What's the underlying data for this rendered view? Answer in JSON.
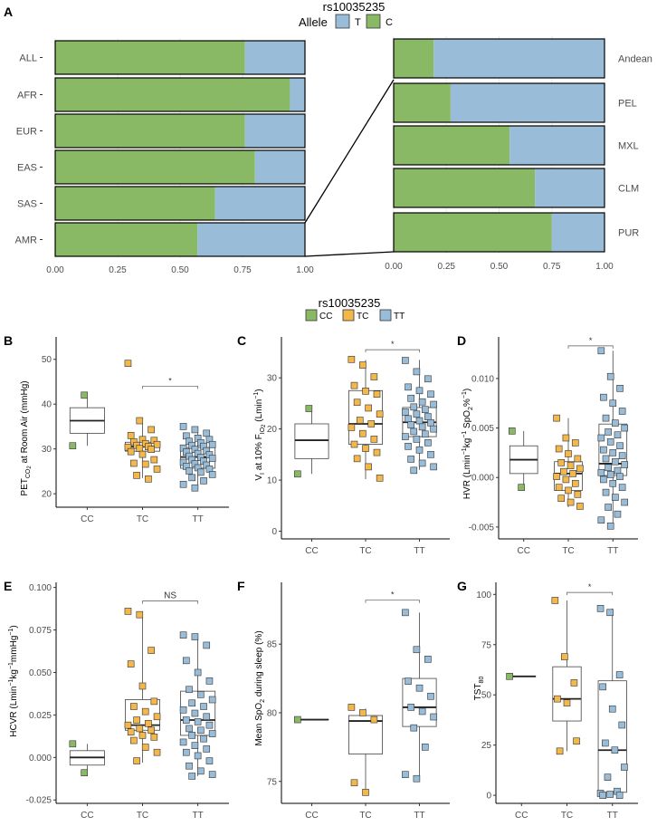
{
  "colors": {
    "green": "#8ab965",
    "blue": "#99bdd8",
    "orange": "#f3b74c",
    "box_stroke": "#444444",
    "grid": "#ebebeb",
    "axis_text": "#4d4d4d"
  },
  "chart_data": [
    {
      "panel": "A",
      "type": "bar",
      "orientation": "horizontal",
      "stacked": true,
      "title": "rs10035235",
      "legend": {
        "title": "Allele",
        "items": [
          "T",
          "C"
        ]
      },
      "left": {
        "categories": [
          "ALL",
          "AFR",
          "EUR",
          "EAS",
          "SAS",
          "AMR"
        ],
        "series": [
          {
            "name": "C",
            "values": [
              0.76,
              0.94,
              0.76,
              0.8,
              0.64,
              0.57
            ]
          },
          {
            "name": "T",
            "values": [
              0.24,
              0.06,
              0.24,
              0.2,
              0.36,
              0.43
            ]
          }
        ],
        "xlim": [
          0,
          1
        ],
        "xticks": [
          "0.00",
          "0.25",
          "0.50",
          "0.75",
          "1.00"
        ]
      },
      "right": {
        "categories": [
          "Andean",
          "PEL",
          "MXL",
          "CLM",
          "PUR"
        ],
        "series": [
          {
            "name": "C",
            "values": [
              0.19,
              0.27,
              0.55,
              0.67,
              0.75
            ]
          },
          {
            "name": "T",
            "values": [
              0.81,
              0.73,
              0.45,
              0.33,
              0.25
            ]
          }
        ],
        "xlim": [
          0,
          1
        ],
        "xticks": [
          "0.00",
          "0.25",
          "0.50",
          "0.75",
          "1.00"
        ]
      }
    },
    {
      "panel": "B",
      "type": "box",
      "ylim": [
        17,
        55
      ],
      "yticks": [
        20,
        30,
        40,
        50
      ],
      "categories": [
        "CC",
        "TC",
        "TT"
      ],
      "sig": {
        "label": "*",
        "from": 1,
        "to": 2,
        "y": 44
      },
      "boxes": [
        {
          "q1": 33.5,
          "median": 36.3,
          "q3": 39.2,
          "wlo": 30.7,
          "whi": 42.0
        },
        {
          "q1": 29.5,
          "median": 30.5,
          "q3": 31.5,
          "wlo": 23.5,
          "whi": 36.3
        },
        {
          "q1": 25.7,
          "median": 28.2,
          "q3": 30.3,
          "wlo": 21.0,
          "whi": 35.0
        }
      ],
      "points": [
        [
          30.7,
          42.0
        ],
        [
          49.1,
          36.3,
          34.3,
          33.0,
          32.1,
          31.9,
          31.6,
          31.2,
          31.0,
          30.8,
          30.5,
          30.4,
          30.1,
          29.9,
          29.4,
          28.8,
          27.6,
          26.8,
          26.6,
          25.5,
          24.1,
          23.3
        ],
        [
          35.0,
          34.3,
          33.5,
          32.9,
          32.4,
          32.1,
          31.7,
          31.4,
          31.0,
          30.8,
          30.6,
          30.2,
          29.9,
          29.6,
          29.3,
          29.0,
          28.7,
          28.4,
          28.1,
          27.9,
          27.6,
          27.3,
          27.0,
          26.7,
          26.4,
          26.1,
          25.8,
          25.5,
          25.1,
          24.8,
          24.3,
          23.6,
          22.9,
          22.1,
          21.3
        ]
      ]
    },
    {
      "panel": "C",
      "type": "box",
      "ylim": [
        -1.5,
        38
      ],
      "yticks": [
        0,
        10,
        20,
        30
      ],
      "categories": [
        "CC",
        "TC",
        "TT"
      ],
      "sig": {
        "label": "*",
        "from": 1,
        "to": 2,
        "y": 35.5
      },
      "boxes": [
        {
          "q1": 14.2,
          "median": 17.8,
          "q3": 21.0,
          "wlo": 11.2,
          "whi": 24.0
        },
        {
          "q1": 17.0,
          "median": 21.0,
          "q3": 27.5,
          "wlo": 10.2,
          "whi": 33.5
        },
        {
          "q1": 18.5,
          "median": 21.3,
          "q3": 24.2,
          "wlo": 12.0,
          "whi": 33.5
        }
      ],
      "points": [
        [
          11.2,
          24.0
        ],
        [
          33.6,
          32.5,
          30.2,
          28.5,
          27.4,
          26.8,
          25.2,
          24.1,
          22.9,
          21.7,
          21.0,
          20.3,
          19.1,
          18.0,
          17.0,
          16.2,
          15.4,
          14.2,
          12.6,
          10.4
        ],
        [
          33.4,
          31.2,
          29.8,
          28.2,
          27.5,
          26.8,
          26.0,
          25.3,
          24.8,
          24.3,
          23.8,
          23.3,
          22.9,
          22.4,
          22.0,
          21.6,
          21.2,
          20.8,
          20.4,
          20.0,
          19.5,
          19.0,
          18.5,
          18.0,
          17.3,
          16.6,
          15.9,
          15.0,
          14.1,
          13.3,
          12.6,
          11.9
        ]
      ]
    },
    {
      "panel": "D",
      "type": "box",
      "ylim": [
        -0.0062,
        0.0142
      ],
      "yticks": [
        -0.005,
        0.0,
        0.005,
        0.01
      ],
      "ytick_labels": [
        "-0.005",
        "0.000",
        "0.005",
        "0.010"
      ],
      "categories": [
        "CC",
        "TC",
        "TT"
      ],
      "sig": {
        "label": "*",
        "from": 1,
        "to": 2,
        "y": 0.0133
      },
      "boxes": [
        {
          "q1": 0.0004,
          "median": 0.0018,
          "q3": 0.0032,
          "wlo": -0.001,
          "whi": 0.0047
        },
        {
          "q1": -0.0013,
          "median": 0.0004,
          "q3": 0.0016,
          "wlo": -0.003,
          "whi": 0.006
        },
        {
          "q1": 0.0002,
          "median": 0.0014,
          "q3": 0.0054,
          "wlo": -0.005,
          "whi": 0.0128
        }
      ],
      "points": [
        [
          0.0047,
          -0.001
        ],
        [
          0.006,
          0.004,
          0.0035,
          0.0029,
          0.0024,
          0.0019,
          0.0015,
          0.0012,
          0.0009,
          0.0006,
          0.0004,
          0.0001,
          -0.0002,
          -0.0006,
          -0.001,
          -0.0013,
          -0.0017,
          -0.0021,
          -0.0025,
          -0.0029
        ],
        [
          0.0128,
          0.0102,
          0.009,
          0.0081,
          0.0075,
          0.0067,
          0.006,
          0.0055,
          0.005,
          0.0046,
          0.0043,
          0.004,
          0.0036,
          0.0032,
          0.0028,
          0.0025,
          0.0022,
          0.0019,
          0.0016,
          0.0013,
          0.001,
          0.0007,
          0.0005,
          0.0003,
          0.0001,
          -0.0002,
          -0.0006,
          -0.001,
          -0.0015,
          -0.002,
          -0.0025,
          -0.003,
          -0.0037,
          -0.0043,
          -0.0049
        ]
      ]
    },
    {
      "panel": "E",
      "type": "box",
      "ylim": [
        -0.027,
        0.103
      ],
      "yticks": [
        -0.025,
        0.0,
        0.025,
        0.05,
        0.075,
        0.1
      ],
      "ytick_labels": [
        "-0.025",
        "0.000",
        "0.025",
        "0.050",
        "0.075",
        "0.100"
      ],
      "categories": [
        "CC",
        "TC",
        "TT"
      ],
      "sig": {
        "label": "NS",
        "from": 1,
        "to": 2,
        "y": 0.092
      },
      "boxes": [
        {
          "q1": -0.0045,
          "median": 0.0,
          "q3": 0.004,
          "wlo": -0.009,
          "whi": 0.008
        },
        {
          "q1": 0.016,
          "median": 0.019,
          "q3": 0.034,
          "wlo": -0.003,
          "whi": 0.086
        },
        {
          "q1": 0.013,
          "median": 0.022,
          "q3": 0.039,
          "wlo": -0.011,
          "whi": 0.072
        }
      ],
      "points": [
        [
          0.008,
          -0.009
        ],
        [
          0.086,
          0.084,
          0.063,
          0.055,
          0.042,
          0.033,
          0.03,
          0.027,
          0.024,
          0.022,
          0.02,
          0.019,
          0.017,
          0.016,
          0.015,
          0.013,
          0.012,
          0.01,
          0.006,
          0.003,
          -0.002
        ],
        [
          0.072,
          0.071,
          0.066,
          0.057,
          0.05,
          0.045,
          0.04,
          0.037,
          0.034,
          0.032,
          0.03,
          0.028,
          0.026,
          0.024,
          0.022,
          0.021,
          0.019,
          0.017,
          0.016,
          0.014,
          0.013,
          0.011,
          0.009,
          0.007,
          0.005,
          0.003,
          0.001,
          -0.002,
          -0.005,
          -0.008,
          -0.01,
          -0.011
        ]
      ]
    },
    {
      "panel": "F",
      "type": "box",
      "ylim": [
        73.4,
        89.5
      ],
      "yticks": [
        75,
        80,
        85
      ],
      "categories": [
        "CC",
        "TC",
        "TT"
      ],
      "sig": {
        "label": "*",
        "from": 1,
        "to": 2,
        "y": 88.2
      },
      "boxes": [
        {
          "q1": 79.5,
          "median": 79.5,
          "q3": 79.5,
          "wlo": 79.5,
          "whi": 79.5
        },
        {
          "q1": 77.0,
          "median": 79.4,
          "q3": 79.8,
          "wlo": 74.2,
          "whi": 80.3
        },
        {
          "q1": 79.0,
          "median": 80.4,
          "q3": 82.5,
          "wlo": 75.2,
          "whi": 87.3
        }
      ],
      "points": [
        [
          79.5
        ],
        [
          80.4,
          80.0,
          79.5,
          74.9,
          74.2
        ],
        [
          87.3,
          84.6,
          83.9,
          82.3,
          81.8,
          81.2,
          80.4,
          80.1,
          79.7,
          78.9,
          77.5,
          75.5,
          75.2
        ]
      ]
    },
    {
      "panel": "G",
      "type": "box",
      "ylim": [
        -4,
        106
      ],
      "yticks": [
        0,
        25,
        50,
        75,
        100
      ],
      "categories": [
        "CC",
        "TC",
        "TT"
      ],
      "sig": {
        "label": "*",
        "from": 1,
        "to": 2,
        "y": 101
      },
      "boxes": [
        {
          "q1": 59.2,
          "median": 59.2,
          "q3": 59.2,
          "wlo": 59.2,
          "whi": 59.2
        },
        {
          "q1": 37.0,
          "median": 48.0,
          "q3": 64.0,
          "wlo": 22.0,
          "whi": 97.0
        },
        {
          "q1": 1.5,
          "median": 22.5,
          "q3": 57.0,
          "wlo": 0.0,
          "whi": 93.0
        }
      ],
      "points": [
        [
          59.2
        ],
        [
          97.0,
          69.0,
          56.0,
          48.0,
          46.0,
          27.0,
          22.0
        ],
        [
          93.0,
          91.0,
          60.0,
          54.0,
          43.0,
          35.0,
          26.0,
          22.5,
          14.0,
          9.0,
          2.0,
          1.0,
          0.5,
          0.0,
          0.0
        ]
      ]
    }
  ],
  "labels": {
    "panel_a": "A",
    "panel_b": "B",
    "panel_c": "C",
    "panel_d": "D",
    "panel_e": "E",
    "panel_f": "F",
    "panel_g": "G",
    "legend_title_top": "rs10035235",
    "allele_label": "Allele",
    "allele_t": "T",
    "allele_c": "C",
    "legend_title_mid": "rs10035235",
    "geno_cc": "CC",
    "geno_tc": "TC",
    "geno_tt": "TT",
    "ylabel_b_main": "PET",
    "ylabel_b_sub": "CO",
    "ylabel_b_sub2": "2",
    "ylabel_b_tail": " at Room Air (mmHg)",
    "ylabel_c_main": "V",
    "ylabel_c_sub": "I",
    "ylabel_c_mid": " at 10% F",
    "ylabel_c_sub2": "IO",
    "ylabel_c_sub3": "2",
    "ylabel_c_tail": " (Lmin",
    "ylabel_c_sup": "−1",
    "ylabel_c_end": ")",
    "ylabel_d_main": "HVR (Lmin",
    "ylabel_d_sup1": "−1",
    "ylabel_d_mid": "kg",
    "ylabel_d_sup2": "−1",
    "ylabel_d_mid2": " SpO",
    "ylabel_d_sub": "2",
    "ylabel_d_mid3": "%",
    "ylabel_d_sup3": "−1",
    "ylabel_d_end": ")",
    "ylabel_e_main": "HCVR (Lmin",
    "ylabel_e_sup1": "−1",
    "ylabel_e_mid": "kg",
    "ylabel_e_sup2": "−1",
    "ylabel_e_end": "mmHg",
    "ylabel_e_sup3": "−1",
    "ylabel_e_close": ")",
    "ylabel_f_main": "Mean SpO",
    "ylabel_f_sub": "2",
    "ylabel_f_tail": " during sleep (%)",
    "ylabel_g_main": "TST",
    "ylabel_g_sub": "80"
  }
}
